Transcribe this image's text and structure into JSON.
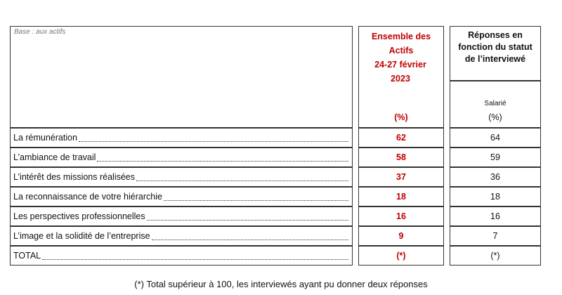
{
  "table": {
    "base": "Base : aux actifs",
    "col1_header": {
      "line1": "Ensemble des Actifs",
      "line2": "24-27 février 2023",
      "unit": "(%)"
    },
    "col2_header": {
      "group": "Réponses en fonction du statut de l’interviewé",
      "sub": "Salarié",
      "unit": "(%)"
    },
    "rows": [
      [
        "La rémunération",
        62,
        64
      ],
      [
        "L’ambiance de travail",
        58,
        59
      ],
      [
        "L’intérêt des missions réalisées",
        37,
        36
      ],
      [
        "La reconnaissance de votre hiérarchie",
        18,
        18
      ],
      [
        "Les perspectives professionnelles",
        16,
        16
      ],
      [
        "L’image et la solidité de l’entreprise",
        9,
        7
      ],
      [
        "TOTAL",
        "(*)",
        "(*)"
      ]
    ]
  },
  "footnote": "(*) Total supérieur à 100, les interviewés ayant pu donner deux réponses"
}
